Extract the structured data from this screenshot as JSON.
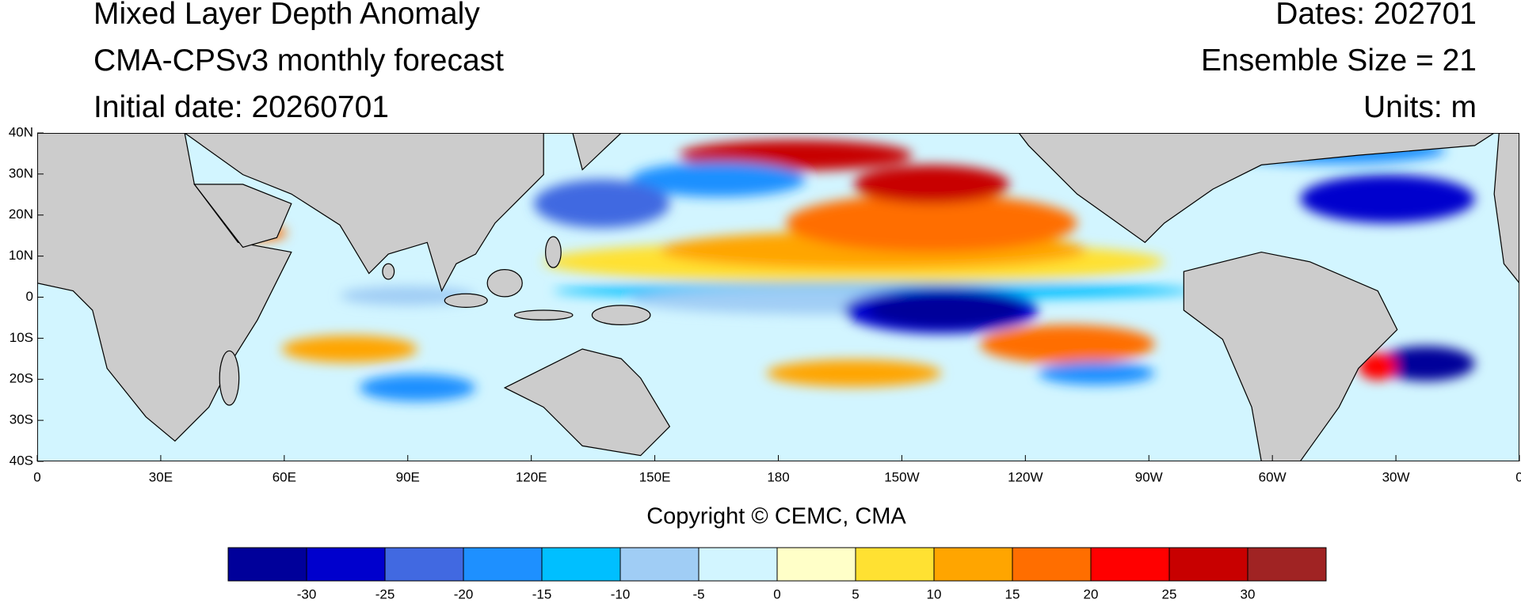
{
  "header": {
    "title": "Mixed Layer Depth Anomaly",
    "subtitle": "CMA-CPSv3 monthly forecast",
    "initial_date": "Initial date: 20260701",
    "dates": "Dates: 202701",
    "ensemble": "Ensemble Size = 21",
    "units": "Units: m"
  },
  "map": {
    "x_labels": [
      "0",
      "30E",
      "60E",
      "90E",
      "120E",
      "150E",
      "180",
      "150W",
      "120W",
      "90W",
      "60W",
      "30W",
      "0"
    ],
    "y_labels": [
      "40N",
      "30N",
      "20N",
      "10N",
      "0",
      "10S",
      "20S",
      "30S",
      "40S"
    ]
  },
  "footer": {
    "copyright": "Copyright © CEMC, CMA"
  },
  "colorbar": {
    "colors": [
      "#00009a",
      "#0000cd",
      "#4169e1",
      "#1e90ff",
      "#00bfff",
      "#a0cdf5",
      "#d2f5ff",
      "#ffffc8",
      "#ffe132",
      "#ffa500",
      "#ff6e00",
      "#ff0000",
      "#c80000",
      "#a02323"
    ],
    "ticks": [
      -30,
      -25,
      -20,
      -15,
      -10,
      -5,
      0,
      5,
      10,
      15,
      20,
      25,
      30
    ]
  }
}
